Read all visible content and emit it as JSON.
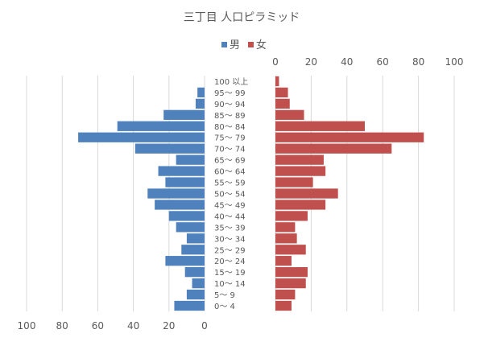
{
  "chart_data": {
    "type": "bar",
    "title": "三丁目 人口ピラミッド",
    "legend": {
      "position": "top",
      "entries": [
        {
          "name": "男",
          "color": "#4f81bd"
        },
        {
          "name": "女",
          "color": "#c0504d"
        }
      ]
    },
    "categories": [
      "100 以上",
      "95～ 99",
      "90～ 94",
      "85～ 89",
      "80～ 84",
      "75～ 79",
      "70～ 74",
      "65～ 69",
      "60～ 64",
      "55～ 59",
      "50～ 54",
      "45～ 49",
      "40～ 44",
      "35～ 39",
      "30～ 34",
      "25～ 29",
      "20～ 24",
      "15～ 19",
      "10～ 14",
      "5～ 9",
      "0～ 4"
    ],
    "series": [
      {
        "name": "男",
        "color": "#4f81bd",
        "values": [
          0,
          4,
          5,
          23,
          49,
          71,
          39,
          16,
          26,
          22,
          32,
          28,
          20,
          16,
          10,
          13,
          22,
          11,
          7,
          10,
          17
        ]
      },
      {
        "name": "女",
        "color": "#c0504d",
        "values": [
          2,
          7,
          8,
          16,
          50,
          83,
          65,
          27,
          28,
          21,
          35,
          28,
          18,
          11,
          12,
          17,
          9,
          18,
          17,
          11,
          9
        ]
      }
    ],
    "x_axis_left": {
      "ticks": [
        "100",
        "80",
        "60",
        "40",
        "20",
        "0"
      ],
      "range": [
        100,
        0
      ],
      "position": "bottom"
    },
    "x_axis_right": {
      "ticks": [
        "0",
        "20",
        "40",
        "60",
        "80",
        "100"
      ],
      "range": [
        0,
        100
      ],
      "position": "top"
    },
    "grid": true
  }
}
